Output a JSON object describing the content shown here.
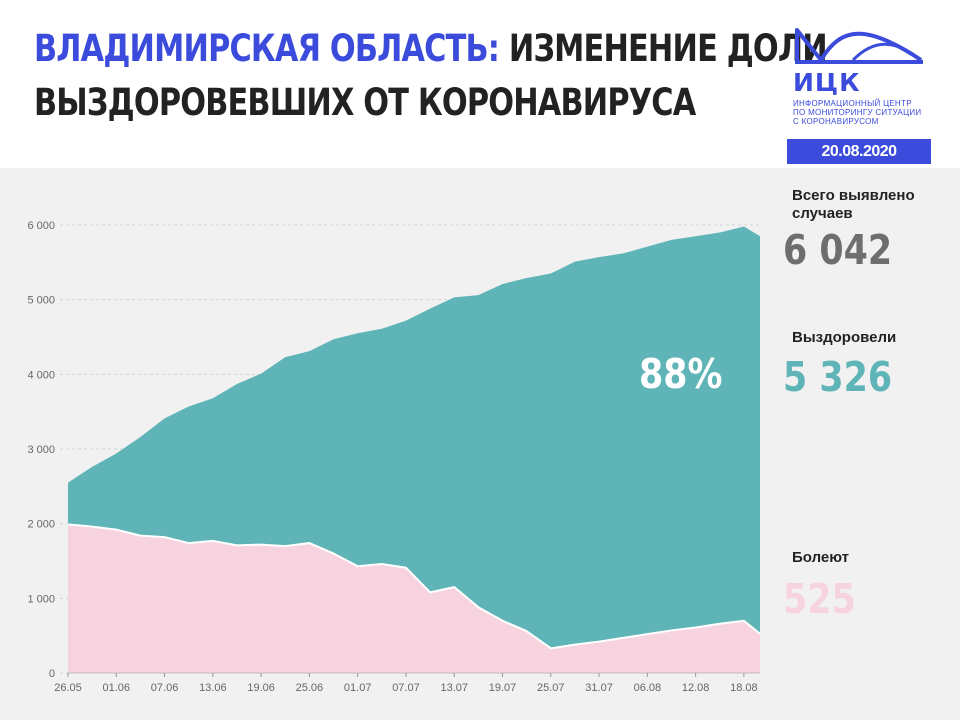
{
  "header": {
    "title_region": "ВЛАДИМИРСКАЯ ОБЛАСТЬ:",
    "title_line1_rest": "ИЗМЕНЕНИЕ ДОЛИ",
    "title_line2": "ВЫЗДОРОВЕВШИХ ОТ КОРОНАВИРУСА"
  },
  "logo": {
    "name": "ИЦК",
    "subtitle_lines": [
      "ИНФОРМАЦИОННЫЙ ЦЕНТР",
      "ПО МОНИТОРИНГУ СИТУАЦИИ",
      "С КОРОНАВИРУСОМ"
    ]
  },
  "date": "20.08.2020",
  "stats": {
    "total_label": "Всего выявлено случаев",
    "total_value": "6 042",
    "recovered_label": "Выздоровели",
    "recovered_value": "5 326",
    "sick_label": "Болеют",
    "sick_value": "525",
    "recovered_share": "88%"
  },
  "colors": {
    "accent": "#3b4bdc",
    "recovered": "#5fb4b7",
    "sick": "#f7d3df",
    "total_value": "#6e6e6e",
    "recovered_value": "#5fb4b7",
    "sick_value": "#f7d3df"
  },
  "chart_data": {
    "type": "area",
    "ylim": [
      0,
      6000
    ],
    "yticks": [
      0,
      1000,
      2000,
      3000,
      4000,
      5000,
      6000
    ],
    "ytick_labels": [
      "0",
      "1 000",
      "2 000",
      "3 000",
      "4 000",
      "5 000",
      "6 000"
    ],
    "xtick_labels": [
      "26.05",
      "01.06",
      "07.06",
      "13.06",
      "19.06",
      "25.06",
      "01.07",
      "07.07",
      "13.07",
      "19.07",
      "25.07",
      "31.07",
      "06.08",
      "12.08",
      "18.08"
    ],
    "grid": true,
    "x": [
      "26.05",
      "29.05",
      "01.06",
      "04.06",
      "07.06",
      "10.06",
      "13.06",
      "16.06",
      "19.06",
      "22.06",
      "25.06",
      "28.06",
      "01.07",
      "04.07",
      "07.07",
      "10.07",
      "13.07",
      "16.07",
      "19.07",
      "22.07",
      "25.07",
      "28.07",
      "31.07",
      "03.08",
      "06.08",
      "09.08",
      "12.08",
      "15.08",
      "18.08",
      "20.08"
    ],
    "series": [
      {
        "name": "Выздоровели",
        "values": [
          560,
          800,
          1020,
          1320,
          1590,
          1830,
          1910,
          2160,
          2290,
          2530,
          2570,
          2870,
          3120,
          3150,
          3310,
          3800,
          3880,
          4180,
          4510,
          4730,
          5020,
          5130,
          5150,
          5150,
          5190,
          5230,
          5240,
          5240,
          5280,
          5326
        ]
      },
      {
        "name": "Болеют",
        "values": [
          1990,
          1960,
          1920,
          1840,
          1820,
          1740,
          1770,
          1710,
          1720,
          1700,
          1740,
          1600,
          1430,
          1460,
          1410,
          1080,
          1150,
          880,
          700,
          560,
          330,
          380,
          420,
          470,
          520,
          570,
          610,
          660,
          700,
          525
        ]
      }
    ]
  }
}
